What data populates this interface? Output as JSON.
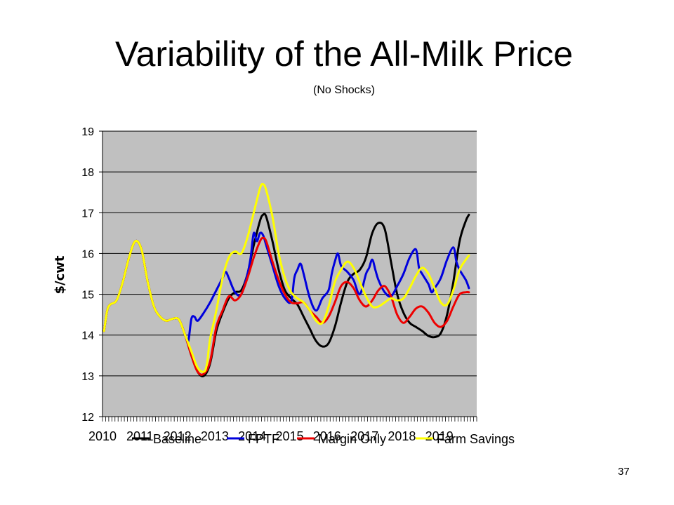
{
  "slide": {
    "title": "Variability of the All-Milk Price",
    "subtitle": "(No Shocks)",
    "page_number": "37"
  },
  "chart_data": {
    "type": "line",
    "ylabel": "$/cwt",
    "xlabel": "",
    "ylim": [
      12,
      19
    ],
    "yticks": [
      12,
      13,
      14,
      15,
      16,
      17,
      18,
      19
    ],
    "x_tick_labels": [
      "2010",
      "2011",
      "2012",
      "2013",
      "2014",
      "2015",
      "2016",
      "2017",
      "2018",
      "2019"
    ],
    "x_start_year": 2010,
    "months_per_year": 12,
    "grid": true,
    "legend_position": "bottom",
    "series": [
      {
        "name": "Baseline",
        "color": "#000000",
        "knots": [
          [
            0,
            14.1
          ],
          [
            1,
            14.6
          ],
          [
            2,
            14.75
          ],
          [
            4,
            14.85
          ],
          [
            6,
            15.3
          ],
          [
            8,
            15.9
          ],
          [
            10,
            16.3
          ],
          [
            12,
            16.1
          ],
          [
            14,
            15.3
          ],
          [
            16,
            14.7
          ],
          [
            18,
            14.45
          ],
          [
            20,
            14.35
          ],
          [
            22,
            14.4
          ],
          [
            24,
            14.38
          ],
          [
            26,
            14.0
          ],
          [
            28,
            13.5
          ],
          [
            30,
            13.1
          ],
          [
            32,
            13.0
          ],
          [
            34,
            13.3
          ],
          [
            36,
            14.1
          ],
          [
            38,
            14.55
          ],
          [
            40,
            14.9
          ],
          [
            42,
            15.05
          ],
          [
            44,
            15.1
          ],
          [
            46,
            15.5
          ],
          [
            48,
            16.2
          ],
          [
            50,
            16.8
          ],
          [
            51,
            16.95
          ],
          [
            52,
            16.9
          ],
          [
            54,
            16.3
          ],
          [
            56,
            15.6
          ],
          [
            58,
            15.1
          ],
          [
            60,
            14.9
          ],
          [
            62,
            14.75
          ],
          [
            64,
            14.45
          ],
          [
            66,
            14.15
          ],
          [
            68,
            13.85
          ],
          [
            70,
            13.72
          ],
          [
            72,
            13.8
          ],
          [
            74,
            14.2
          ],
          [
            76,
            14.8
          ],
          [
            78,
            15.3
          ],
          [
            80,
            15.5
          ],
          [
            82,
            15.6
          ],
          [
            84,
            15.9
          ],
          [
            86,
            16.5
          ],
          [
            88,
            16.75
          ],
          [
            90,
            16.6
          ],
          [
            92,
            15.8
          ],
          [
            94,
            15.0
          ],
          [
            96,
            14.55
          ],
          [
            98,
            14.3
          ],
          [
            100,
            14.2
          ],
          [
            102,
            14.1
          ],
          [
            104,
            13.98
          ],
          [
            106,
            13.95
          ],
          [
            108,
            14.05
          ],
          [
            110,
            14.5
          ],
          [
            112,
            15.3
          ],
          [
            114,
            16.3
          ],
          [
            116,
            16.8
          ],
          [
            117,
            16.95
          ]
        ]
      },
      {
        "name": "FPTF",
        "color": "#0000dd",
        "knots": [
          [
            0,
            14.1
          ],
          [
            1,
            14.6
          ],
          [
            2,
            14.75
          ],
          [
            4,
            14.85
          ],
          [
            6,
            15.3
          ],
          [
            8,
            15.9
          ],
          [
            10,
            16.3
          ],
          [
            12,
            16.1
          ],
          [
            14,
            15.3
          ],
          [
            16,
            14.7
          ],
          [
            18,
            14.45
          ],
          [
            20,
            14.35
          ],
          [
            22,
            14.4
          ],
          [
            24,
            14.38
          ],
          [
            26,
            14.0
          ],
          [
            27,
            13.85
          ],
          [
            28,
            14.4
          ],
          [
            29,
            14.45
          ],
          [
            30,
            14.35
          ],
          [
            32,
            14.55
          ],
          [
            34,
            14.8
          ],
          [
            36,
            15.1
          ],
          [
            38,
            15.4
          ],
          [
            39,
            15.55
          ],
          [
            40,
            15.4
          ],
          [
            42,
            15.05
          ],
          [
            44,
            15.0
          ],
          [
            46,
            15.5
          ],
          [
            47,
            15.9
          ],
          [
            48,
            16.5
          ],
          [
            49,
            16.3
          ],
          [
            50,
            16.5
          ],
          [
            51,
            16.45
          ],
          [
            52,
            16.2
          ],
          [
            54,
            15.7
          ],
          [
            56,
            15.2
          ],
          [
            58,
            14.9
          ],
          [
            60,
            14.82
          ],
          [
            61,
            15.4
          ],
          [
            62,
            15.6
          ],
          [
            63,
            15.75
          ],
          [
            64,
            15.5
          ],
          [
            66,
            14.9
          ],
          [
            68,
            14.6
          ],
          [
            70,
            14.9
          ],
          [
            72,
            15.1
          ],
          [
            73,
            15.5
          ],
          [
            74,
            15.8
          ],
          [
            75,
            16.0
          ],
          [
            76,
            15.7
          ],
          [
            78,
            15.55
          ],
          [
            80,
            15.35
          ],
          [
            82,
            15.0
          ],
          [
            84,
            15.5
          ],
          [
            85,
            15.65
          ],
          [
            86,
            15.85
          ],
          [
            87,
            15.6
          ],
          [
            88,
            15.35
          ],
          [
            90,
            15.05
          ],
          [
            92,
            14.95
          ],
          [
            94,
            15.2
          ],
          [
            96,
            15.5
          ],
          [
            98,
            15.9
          ],
          [
            100,
            16.1
          ],
          [
            101,
            15.65
          ],
          [
            102,
            15.5
          ],
          [
            104,
            15.25
          ],
          [
            105,
            15.05
          ],
          [
            106,
            15.15
          ],
          [
            108,
            15.4
          ],
          [
            110,
            15.85
          ],
          [
            112,
            16.15
          ],
          [
            113,
            15.8
          ],
          [
            114,
            15.6
          ],
          [
            116,
            15.35
          ],
          [
            117,
            15.15
          ]
        ]
      },
      {
        "name": "Margin Only",
        "color": "#ee0000",
        "knots": [
          [
            0,
            14.1
          ],
          [
            1,
            14.6
          ],
          [
            2,
            14.75
          ],
          [
            4,
            14.85
          ],
          [
            6,
            15.3
          ],
          [
            8,
            15.9
          ],
          [
            10,
            16.3
          ],
          [
            12,
            16.1
          ],
          [
            14,
            15.3
          ],
          [
            16,
            14.7
          ],
          [
            18,
            14.45
          ],
          [
            20,
            14.35
          ],
          [
            22,
            14.4
          ],
          [
            24,
            14.38
          ],
          [
            26,
            14.0
          ],
          [
            28,
            13.5
          ],
          [
            30,
            13.1
          ],
          [
            32,
            13.05
          ],
          [
            34,
            13.35
          ],
          [
            36,
            14.2
          ],
          [
            38,
            14.6
          ],
          [
            40,
            14.95
          ],
          [
            42,
            14.85
          ],
          [
            44,
            15.0
          ],
          [
            46,
            15.4
          ],
          [
            48,
            15.9
          ],
          [
            50,
            16.3
          ],
          [
            51,
            16.38
          ],
          [
            52,
            16.3
          ],
          [
            54,
            15.8
          ],
          [
            56,
            15.35
          ],
          [
            58,
            15.0
          ],
          [
            60,
            14.8
          ],
          [
            62,
            14.78
          ],
          [
            64,
            14.8
          ],
          [
            66,
            14.6
          ],
          [
            68,
            14.45
          ],
          [
            70,
            14.3
          ],
          [
            72,
            14.45
          ],
          [
            74,
            14.8
          ],
          [
            76,
            15.2
          ],
          [
            78,
            15.3
          ],
          [
            80,
            15.15
          ],
          [
            82,
            14.85
          ],
          [
            84,
            14.7
          ],
          [
            86,
            14.85
          ],
          [
            88,
            15.1
          ],
          [
            90,
            15.2
          ],
          [
            92,
            14.95
          ],
          [
            94,
            14.5
          ],
          [
            96,
            14.3
          ],
          [
            98,
            14.45
          ],
          [
            100,
            14.65
          ],
          [
            102,
            14.7
          ],
          [
            104,
            14.55
          ],
          [
            106,
            14.3
          ],
          [
            108,
            14.2
          ],
          [
            110,
            14.35
          ],
          [
            112,
            14.7
          ],
          [
            114,
            15.0
          ],
          [
            116,
            15.05
          ],
          [
            117,
            15.05
          ]
        ]
      },
      {
        "name": "Farm Savings",
        "color": "#ffff00",
        "knots": [
          [
            0,
            14.1
          ],
          [
            1,
            14.6
          ],
          [
            2,
            14.75
          ],
          [
            4,
            14.85
          ],
          [
            6,
            15.3
          ],
          [
            8,
            15.9
          ],
          [
            10,
            16.3
          ],
          [
            12,
            16.1
          ],
          [
            14,
            15.3
          ],
          [
            16,
            14.7
          ],
          [
            18,
            14.45
          ],
          [
            20,
            14.35
          ],
          [
            22,
            14.4
          ],
          [
            24,
            14.38
          ],
          [
            26,
            14.0
          ],
          [
            28,
            13.6
          ],
          [
            30,
            13.2
          ],
          [
            32,
            13.1
          ],
          [
            33,
            13.3
          ],
          [
            34,
            13.9
          ],
          [
            36,
            14.6
          ],
          [
            38,
            15.4
          ],
          [
            40,
            15.9
          ],
          [
            42,
            16.05
          ],
          [
            44,
            16.0
          ],
          [
            46,
            16.4
          ],
          [
            48,
            17.0
          ],
          [
            50,
            17.6
          ],
          [
            51,
            17.7
          ],
          [
            52,
            17.55
          ],
          [
            54,
            16.9
          ],
          [
            56,
            16.0
          ],
          [
            58,
            15.4
          ],
          [
            60,
            15.05
          ],
          [
            62,
            14.9
          ],
          [
            64,
            14.8
          ],
          [
            66,
            14.6
          ],
          [
            68,
            14.35
          ],
          [
            70,
            14.3
          ],
          [
            72,
            14.7
          ],
          [
            74,
            15.3
          ],
          [
            76,
            15.6
          ],
          [
            78,
            15.8
          ],
          [
            80,
            15.65
          ],
          [
            82,
            15.3
          ],
          [
            84,
            14.95
          ],
          [
            86,
            14.7
          ],
          [
            88,
            14.7
          ],
          [
            90,
            14.8
          ],
          [
            92,
            14.9
          ],
          [
            94,
            14.85
          ],
          [
            96,
            14.9
          ],
          [
            98,
            15.15
          ],
          [
            100,
            15.45
          ],
          [
            102,
            15.65
          ],
          [
            104,
            15.5
          ],
          [
            106,
            15.15
          ],
          [
            108,
            14.8
          ],
          [
            110,
            14.75
          ],
          [
            112,
            15.1
          ],
          [
            114,
            15.6
          ],
          [
            116,
            15.85
          ],
          [
            117,
            15.95
          ]
        ]
      }
    ]
  }
}
